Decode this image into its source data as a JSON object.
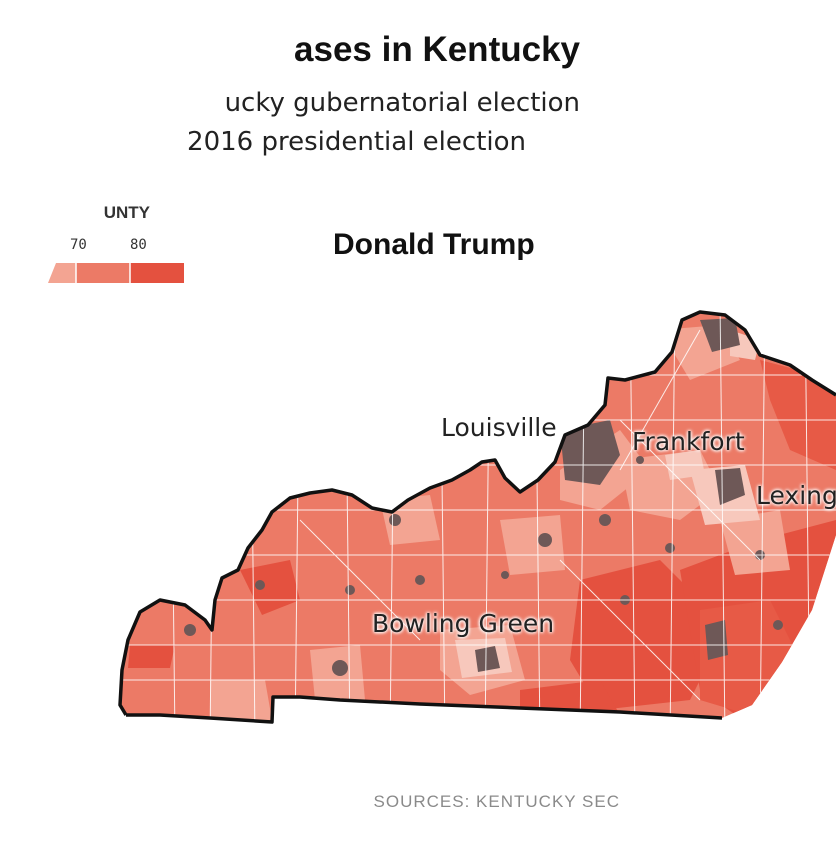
{
  "header": {
    "title": "ases in Kentucky",
    "subtitle_line1": "ucky gubernatorial election",
    "subtitle_line2": "2016 presidential election"
  },
  "legend": {
    "title": "UNTY",
    "ticks": [
      "70",
      "80"
    ],
    "colors": [
      "#f3a492",
      "#ec7a66",
      "#e4513f"
    ]
  },
  "map": {
    "candidate": "Donald Trump",
    "cities": [
      {
        "key": "louisville",
        "label": "Louisville"
      },
      {
        "key": "frankfort",
        "label": "Frankfort"
      },
      {
        "key": "lexington",
        "label": "Lexing"
      },
      {
        "key": "bowling_green",
        "label": "Bowling Green"
      }
    ],
    "colors": {
      "border": "#111111",
      "county_line": "#ffffff",
      "urban": "#6e5857",
      "light": "#f7c8bc"
    }
  },
  "footer": {
    "sources": "SOURCES: KENTUCKY SEC"
  }
}
